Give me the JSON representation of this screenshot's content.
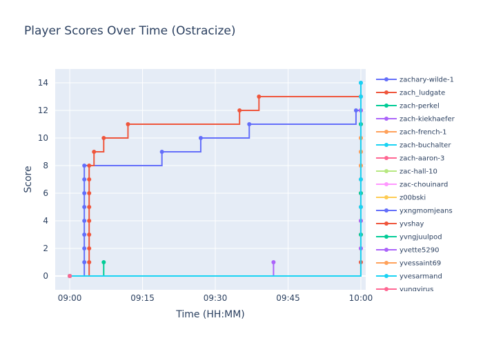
{
  "chart_data": {
    "type": "line",
    "line_shape": "step",
    "title": "Player Scores Over Time (Ostracize)",
    "xlabel": "Time (HH:MM)",
    "ylabel": "Score",
    "x_unit": "HH:MM",
    "xlim": [
      "08:57",
      "10:01"
    ],
    "ylim": [
      -1,
      15
    ],
    "x_ticks": [
      "09:00",
      "09:15",
      "09:30",
      "09:45",
      "10:00"
    ],
    "y_ticks": [
      0,
      2,
      4,
      6,
      8,
      10,
      12,
      14
    ],
    "grid": true,
    "plot_background": "#e5ecf6",
    "legend_position": "right",
    "series": [
      {
        "name": "zachary-wilde-1",
        "color": "#636efa",
        "points": [
          [
            "09:00",
            0
          ],
          [
            "09:03",
            1
          ],
          [
            "09:03",
            2
          ],
          [
            "09:03",
            3
          ],
          [
            "09:03",
            4
          ],
          [
            "09:03",
            5
          ],
          [
            "09:03",
            6
          ],
          [
            "09:03",
            7
          ],
          [
            "09:03",
            8
          ],
          [
            "09:19",
            9
          ],
          [
            "09:27",
            10
          ],
          [
            "09:37",
            11
          ],
          [
            "09:59",
            12
          ],
          [
            "10:00",
            12
          ],
          [
            "10:00",
            13
          ],
          [
            "10:00",
            14
          ]
        ]
      },
      {
        "name": "zach_ludgate",
        "color": "#ef553b",
        "points": [
          [
            "09:00",
            0
          ],
          [
            "09:04",
            1
          ],
          [
            "09:04",
            2
          ],
          [
            "09:04",
            3
          ],
          [
            "09:04",
            4
          ],
          [
            "09:04",
            5
          ],
          [
            "09:04",
            6
          ],
          [
            "09:04",
            7
          ],
          [
            "09:04",
            8
          ],
          [
            "09:05",
            9
          ],
          [
            "09:07",
            10
          ],
          [
            "09:12",
            11
          ],
          [
            "09:35",
            12
          ],
          [
            "09:39",
            13
          ],
          [
            "10:00",
            13
          ]
        ]
      },
      {
        "name": "zach-perkel",
        "color": "#00cc96",
        "points": [
          [
            "09:00",
            0
          ],
          [
            "09:07",
            1
          ]
        ]
      },
      {
        "name": "zach-kiekhaefer",
        "color": "#ab63fa",
        "points": [
          [
            "09:00",
            0
          ],
          [
            "09:42",
            1
          ]
        ]
      },
      {
        "name": "zach-french-1",
        "color": "#ffa15a",
        "points": [
          [
            "09:00",
            0
          ]
        ]
      },
      {
        "name": "zach-buchalter",
        "color": "#19d3f3",
        "points": [
          [
            "09:00",
            0
          ]
        ]
      },
      {
        "name": "zach-aaron-3",
        "color": "#ff6692",
        "points": [
          [
            "09:00",
            0
          ]
        ]
      },
      {
        "name": "zac-hall-10",
        "color": "#b6e880",
        "points": [
          [
            "09:00",
            0
          ]
        ]
      },
      {
        "name": "zac-chouinard",
        "color": "#ff97ff",
        "points": [
          [
            "09:00",
            0
          ]
        ]
      },
      {
        "name": "z00bski",
        "color": "#fecb52",
        "points": [
          [
            "09:00",
            0
          ]
        ]
      },
      {
        "name": "yxngmomjeans",
        "color": "#636efa",
        "points": [
          [
            "09:00",
            0
          ]
        ]
      },
      {
        "name": "yvshay",
        "color": "#ef553b",
        "points": [
          [
            "09:00",
            0
          ],
          [
            "10:00",
            1
          ],
          [
            "10:00",
            2
          ],
          [
            "10:00",
            3
          ],
          [
            "10:00",
            4
          ],
          [
            "10:00",
            5
          ],
          [
            "10:00",
            6
          ],
          [
            "10:00",
            7
          ],
          [
            "10:00",
            8
          ],
          [
            "10:00",
            9
          ],
          [
            "10:00",
            10
          ],
          [
            "10:00",
            11
          ],
          [
            "10:00",
            12
          ]
        ]
      },
      {
        "name": "yvngjuulpod",
        "color": "#00cc96",
        "points": [
          [
            "09:00",
            0
          ],
          [
            "10:00",
            3
          ],
          [
            "10:00",
            6
          ],
          [
            "10:00",
            11
          ]
        ]
      },
      {
        "name": "yvette5290",
        "color": "#ab63fa",
        "points": [
          [
            "09:00",
            0
          ],
          [
            "10:00",
            2
          ],
          [
            "10:00",
            4
          ],
          [
            "10:00",
            12
          ]
        ]
      },
      {
        "name": "yvessaint69",
        "color": "#ffa15a",
        "points": [
          [
            "09:00",
            0
          ],
          [
            "10:00",
            8
          ],
          [
            "10:00",
            9
          ],
          [
            "10:00",
            10
          ]
        ]
      },
      {
        "name": "yvesarmand",
        "color": "#19d3f3",
        "points": [
          [
            "09:00",
            0
          ],
          [
            "10:00",
            5
          ],
          [
            "10:00",
            7
          ],
          [
            "10:00",
            13
          ],
          [
            "10:00",
            14
          ]
        ]
      },
      {
        "name": "yungvirus",
        "color": "#ff6692",
        "points": [
          [
            "09:00",
            0
          ]
        ]
      }
    ]
  }
}
